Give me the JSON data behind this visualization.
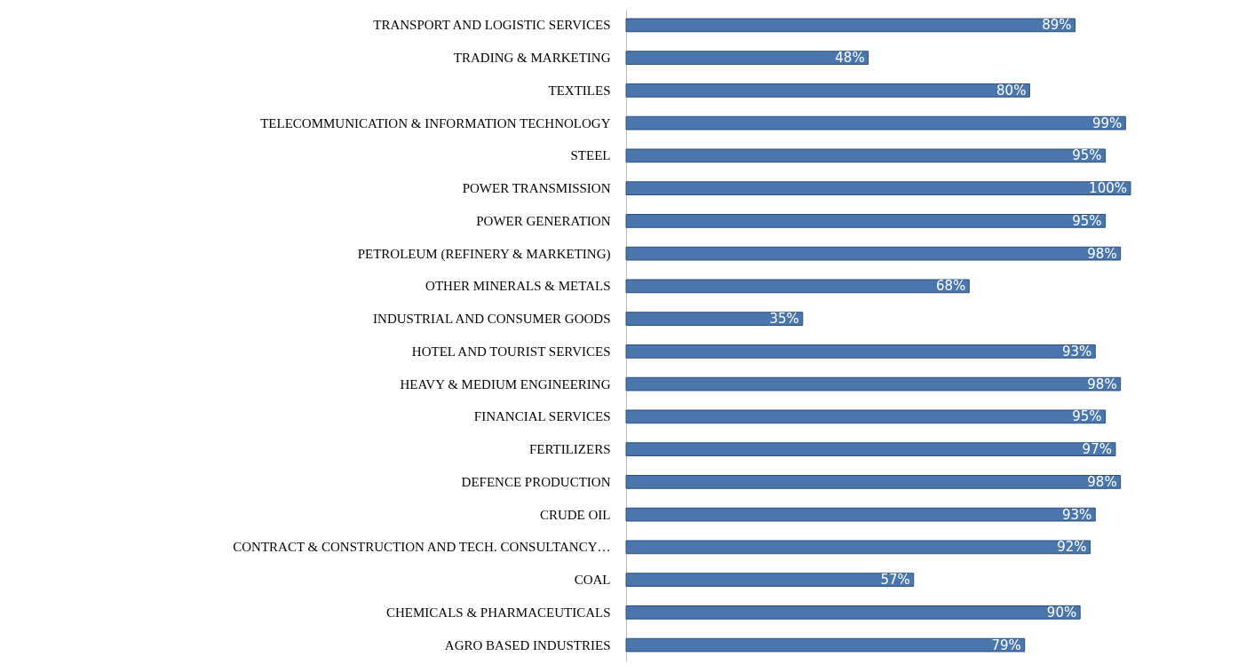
{
  "chart_data": {
    "type": "bar",
    "orientation": "horizontal",
    "categories": [
      "TRANSPORT AND LOGISTIC SERVICES",
      "TRADING & MARKETING",
      "TEXTILES",
      "TELECOMMUNICATION & INFORMATION TECHNOLOGY",
      "STEEL",
      "POWER TRANSMISSION",
      "POWER GENERATION",
      "PETROLEUM (REFINERY & MARKETING)",
      "OTHER MINERALS & METALS",
      "INDUSTRIAL AND CONSUMER GOODS",
      "HOTEL AND TOURIST SERVICES",
      "HEAVY & MEDIUM ENGINEERING",
      "FINANCIAL SERVICES",
      "FERTILIZERS",
      "DEFENCE PRODUCTION",
      "CRUDE OIL",
      "CONTRACT & CONSTRUCTION AND TECH. CONSULTANCY…",
      "COAL",
      "CHEMICALS & PHARMACEUTICALS",
      "AGRO BASED INDUSTRIES"
    ],
    "values": [
      89,
      48,
      80,
      99,
      95,
      100,
      95,
      98,
      68,
      35,
      93,
      98,
      95,
      97,
      98,
      93,
      92,
      57,
      90,
      79
    ],
    "value_labels": [
      "89%",
      "48%",
      "80%",
      "99%",
      "95%",
      "100%",
      "95%",
      "98%",
      "68%",
      "35%",
      "93%",
      "98%",
      "95%",
      "97%",
      "98%",
      "93%",
      "92%",
      "57%",
      "90%",
      "79%"
    ],
    "color": "#4a76ad"
  }
}
